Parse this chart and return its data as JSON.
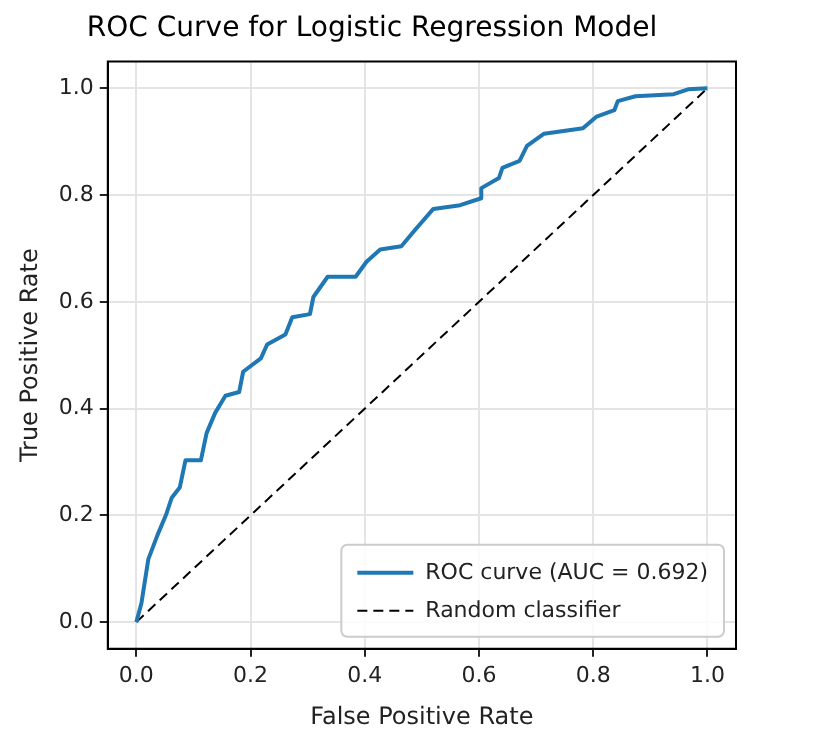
{
  "chart_data": {
    "type": "line",
    "title": "ROC Curve for Logistic Regression Model",
    "xlabel": "False Positive Rate",
    "ylabel": "True Positive Rate",
    "xlim": [
      -0.05,
      1.05
    ],
    "ylim": [
      -0.05,
      1.05
    ],
    "xticks": [
      {
        "value": 0,
        "label": "0.0"
      },
      0.2,
      0.4,
      0.6,
      0.8,
      {
        "value": 1,
        "label": "1.0"
      }
    ],
    "yticks": [
      {
        "value": 0,
        "label": "0.0"
      },
      0.2,
      0.4,
      0.6,
      0.8,
      {
        "value": 1,
        "label": "1.0"
      }
    ],
    "grid": true,
    "legend": "bottom right",
    "marker": "none",
    "series": [
      {
        "name": "ROC curve (AUC = 0.692)",
        "color": "#1f77b4",
        "line_style": "solid",
        "x": [
          0,
          0.009,
          0.021,
          0.037,
          0.052,
          0.062,
          0.076,
          0.086,
          0.113,
          0.123,
          0.138,
          0.156,
          0.18,
          0.187,
          0.218,
          0.229,
          0.261,
          0.273,
          0.304,
          0.31,
          0.335,
          0.384,
          0.403,
          0.427,
          0.464,
          0.489,
          0.52,
          0.567,
          0.604,
          0.604,
          0.635,
          0.641,
          0.671,
          0.684,
          0.714,
          0.782,
          0.806,
          0.837,
          0.843,
          0.874,
          0.941,
          0.966,
          1
        ],
        "values": [
          0,
          0.036,
          0.118,
          0.163,
          0.201,
          0.233,
          0.252,
          0.303,
          0.303,
          0.354,
          0.392,
          0.424,
          0.431,
          0.469,
          0.494,
          0.52,
          0.539,
          0.571,
          0.577,
          0.609,
          0.647,
          0.647,
          0.675,
          0.698,
          0.704,
          0.736,
          0.774,
          0.781,
          0.794,
          0.813,
          0.832,
          0.851,
          0.864,
          0.892,
          0.915,
          0.925,
          0.947,
          0.959,
          0.976,
          0.985,
          0.989,
          0.998,
          1
        ]
      },
      {
        "name": "Random classifier",
        "color": "#000000",
        "line_style": "dashed",
        "x": [
          0,
          1
        ],
        "values": [
          0,
          1
        ]
      }
    ]
  }
}
